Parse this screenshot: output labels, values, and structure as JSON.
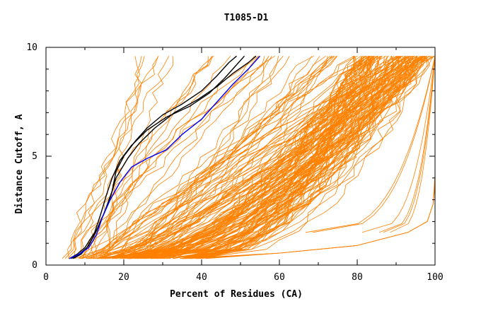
{
  "chart_data": {
    "type": "line",
    "title": "T1085-D1",
    "xlabel": "Percent of Residues (CA)",
    "ylabel": "Distance Cutoff, A",
    "xlim": [
      0,
      100
    ],
    "ylim": [
      0,
      10
    ],
    "x_ticks": [
      0,
      20,
      40,
      60,
      80,
      100
    ],
    "y_ticks": [
      0,
      5,
      10
    ],
    "grid": false,
    "legend": "none",
    "colors": {
      "others": "#ff8000",
      "highlight": "#000000",
      "blue": "#0000ff"
    },
    "highlight_series": [
      {
        "color": "#000000",
        "points": [
          [
            7.0,
            0.3
          ],
          [
            9.0,
            0.5
          ],
          [
            11.0,
            0.9
          ],
          [
            13.0,
            1.6
          ],
          [
            15.0,
            2.4
          ],
          [
            17.0,
            3.4
          ],
          [
            18.0,
            4.3
          ],
          [
            20.0,
            5.0
          ],
          [
            23.0,
            5.7
          ],
          [
            26.0,
            6.3
          ],
          [
            30.0,
            6.9
          ],
          [
            35.0,
            7.4
          ],
          [
            40.0,
            8.0
          ],
          [
            44.0,
            8.7
          ],
          [
            47.0,
            9.3
          ],
          [
            49.0,
            9.6
          ]
        ]
      },
      {
        "color": "#000000",
        "points": [
          [
            6.5,
            0.3
          ],
          [
            8.5,
            0.5
          ],
          [
            10.5,
            0.8
          ],
          [
            12.5,
            1.4
          ],
          [
            14.5,
            2.2
          ],
          [
            16.5,
            3.1
          ],
          [
            18.0,
            4.0
          ],
          [
            21.0,
            4.9
          ],
          [
            24.0,
            5.6
          ],
          [
            28.0,
            6.3
          ],
          [
            33.0,
            7.0
          ],
          [
            39.0,
            7.6
          ],
          [
            44.0,
            8.2
          ],
          [
            48.0,
            8.8
          ],
          [
            52.0,
            9.3
          ],
          [
            54.0,
            9.6
          ]
        ]
      },
      {
        "color": "#000000",
        "points": [
          [
            6.0,
            0.3
          ],
          [
            8.0,
            0.5
          ],
          [
            10.0,
            0.8
          ],
          [
            12.5,
            1.5
          ],
          [
            14.0,
            2.3
          ],
          [
            15.5,
            3.2
          ],
          [
            17.0,
            4.0
          ],
          [
            19.0,
            4.8
          ],
          [
            22.0,
            5.5
          ],
          [
            26.0,
            6.2
          ],
          [
            31.0,
            6.8
          ],
          [
            37.0,
            7.3
          ],
          [
            42.0,
            7.9
          ],
          [
            46.0,
            8.6
          ],
          [
            49.0,
            9.2
          ],
          [
            51.0,
            9.6
          ]
        ]
      },
      {
        "color": "#0000ff",
        "points": [
          [
            6.0,
            0.3
          ],
          [
            8.5,
            0.5
          ],
          [
            11.0,
            0.8
          ],
          [
            13.0,
            1.4
          ],
          [
            14.5,
            2.2
          ],
          [
            16.5,
            3.0
          ],
          [
            19.0,
            3.8
          ],
          [
            22.0,
            4.5
          ],
          [
            26.0,
            4.9
          ],
          [
            31.0,
            5.3
          ],
          [
            35.0,
            6.0
          ],
          [
            40.0,
            6.7
          ],
          [
            44.0,
            7.5
          ],
          [
            48.0,
            8.3
          ],
          [
            52.0,
            9.0
          ],
          [
            55.0,
            9.6
          ]
        ]
      }
    ]
  }
}
